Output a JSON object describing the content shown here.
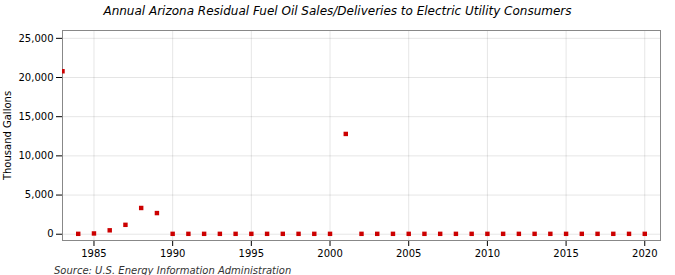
{
  "chart_data": {
    "type": "scatter",
    "title": "Annual Arizona Residual Fuel Oil Sales/Deliveries to Electric Utility Consumers",
    "ylabel": "Thousand Gallons",
    "source": "Source: U.S. Energy Information Administration",
    "color": "#cc0000",
    "marker": "square",
    "grid": true,
    "xlim": [
      1983,
      2021
    ],
    "ylim": [
      -800,
      26000
    ],
    "xticks": [
      1985,
      1990,
      1995,
      2000,
      2005,
      2010,
      2015,
      2020
    ],
    "yticks": [
      0,
      {
        "value": 5000,
        "label": "5,000"
      },
      {
        "value": 10000,
        "label": "10,000"
      },
      {
        "value": 15000,
        "label": "15,000"
      },
      {
        "value": 20000,
        "label": "20,000"
      },
      {
        "value": 25000,
        "label": "25,000"
      }
    ],
    "x": [
      1983,
      1984,
      1985,
      1986,
      1987,
      1988,
      1989,
      1990,
      1991,
      1992,
      1993,
      1994,
      1995,
      1996,
      1997,
      1998,
      1999,
      2000,
      2001,
      2002,
      2003,
      2004,
      2005,
      2006,
      2007,
      2008,
      2009,
      2010,
      2011,
      2012,
      2013,
      2014,
      2015,
      2016,
      2017,
      2018,
      2019,
      2020
    ],
    "values": [
      20800,
      50,
      100,
      500,
      1200,
      3350,
      2700,
      50,
      50,
      50,
      50,
      50,
      50,
      50,
      50,
      50,
      50,
      50,
      12800,
      50,
      50,
      50,
      50,
      50,
      50,
      50,
      50,
      50,
      50,
      50,
      50,
      50,
      50,
      50,
      50,
      50,
      50,
      50
    ]
  }
}
